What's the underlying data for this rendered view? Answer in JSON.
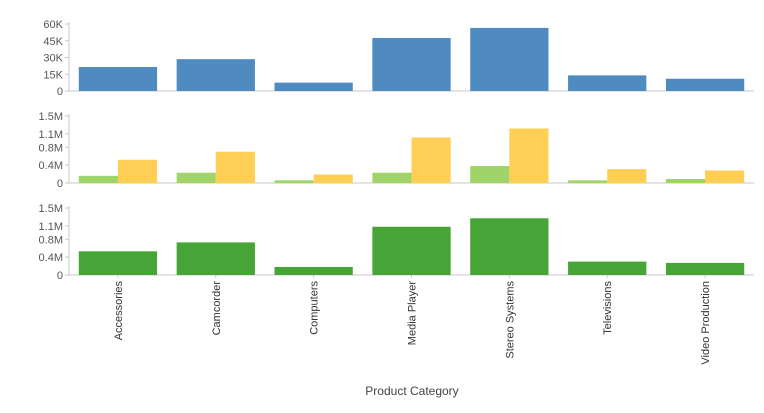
{
  "chart_data": {
    "type": "bar",
    "xlabel": "Product Category",
    "categories": [
      "Accessories",
      "Camcorder",
      "Computers",
      "Media Player",
      "Stereo Systems",
      "Televisions",
      "Video Production"
    ],
    "panels": [
      {
        "ylim": [
          0,
          60000
        ],
        "yticks": [
          0,
          15000,
          30000,
          45000,
          60000
        ],
        "ytick_labels": [
          "0",
          "15K",
          "30K",
          "45K",
          "60K"
        ],
        "series": [
          {
            "color": "#4f8bbf",
            "values": [
              21500,
              28500,
              7500,
              47500,
              56500,
              14000,
              11000
            ]
          }
        ]
      },
      {
        "ylim": [
          0,
          1500000
        ],
        "yticks": [
          0,
          400000,
          800000,
          1100000,
          1500000
        ],
        "ytick_labels": [
          "0",
          "0.4M",
          "0.8M",
          "1.1M",
          "1.5M"
        ],
        "series": [
          {
            "color": "#a0d468",
            "values": [
              160000,
              230000,
              60000,
              230000,
              380000,
              60000,
              90000
            ]
          },
          {
            "color": "#ffce54",
            "values": [
              520000,
              700000,
              190000,
              1020000,
              1220000,
              310000,
              280000
            ]
          }
        ]
      },
      {
        "ylim": [
          0,
          1500000
        ],
        "yticks": [
          0,
          400000,
          800000,
          1100000,
          1500000
        ],
        "ytick_labels": [
          "0",
          "0.4M",
          "0.8M",
          "1.1M",
          "1.5M"
        ],
        "series": [
          {
            "color": "#47a537",
            "values": [
              530000,
              730000,
              180000,
              1080000,
              1270000,
              300000,
              270000
            ]
          }
        ]
      }
    ]
  }
}
